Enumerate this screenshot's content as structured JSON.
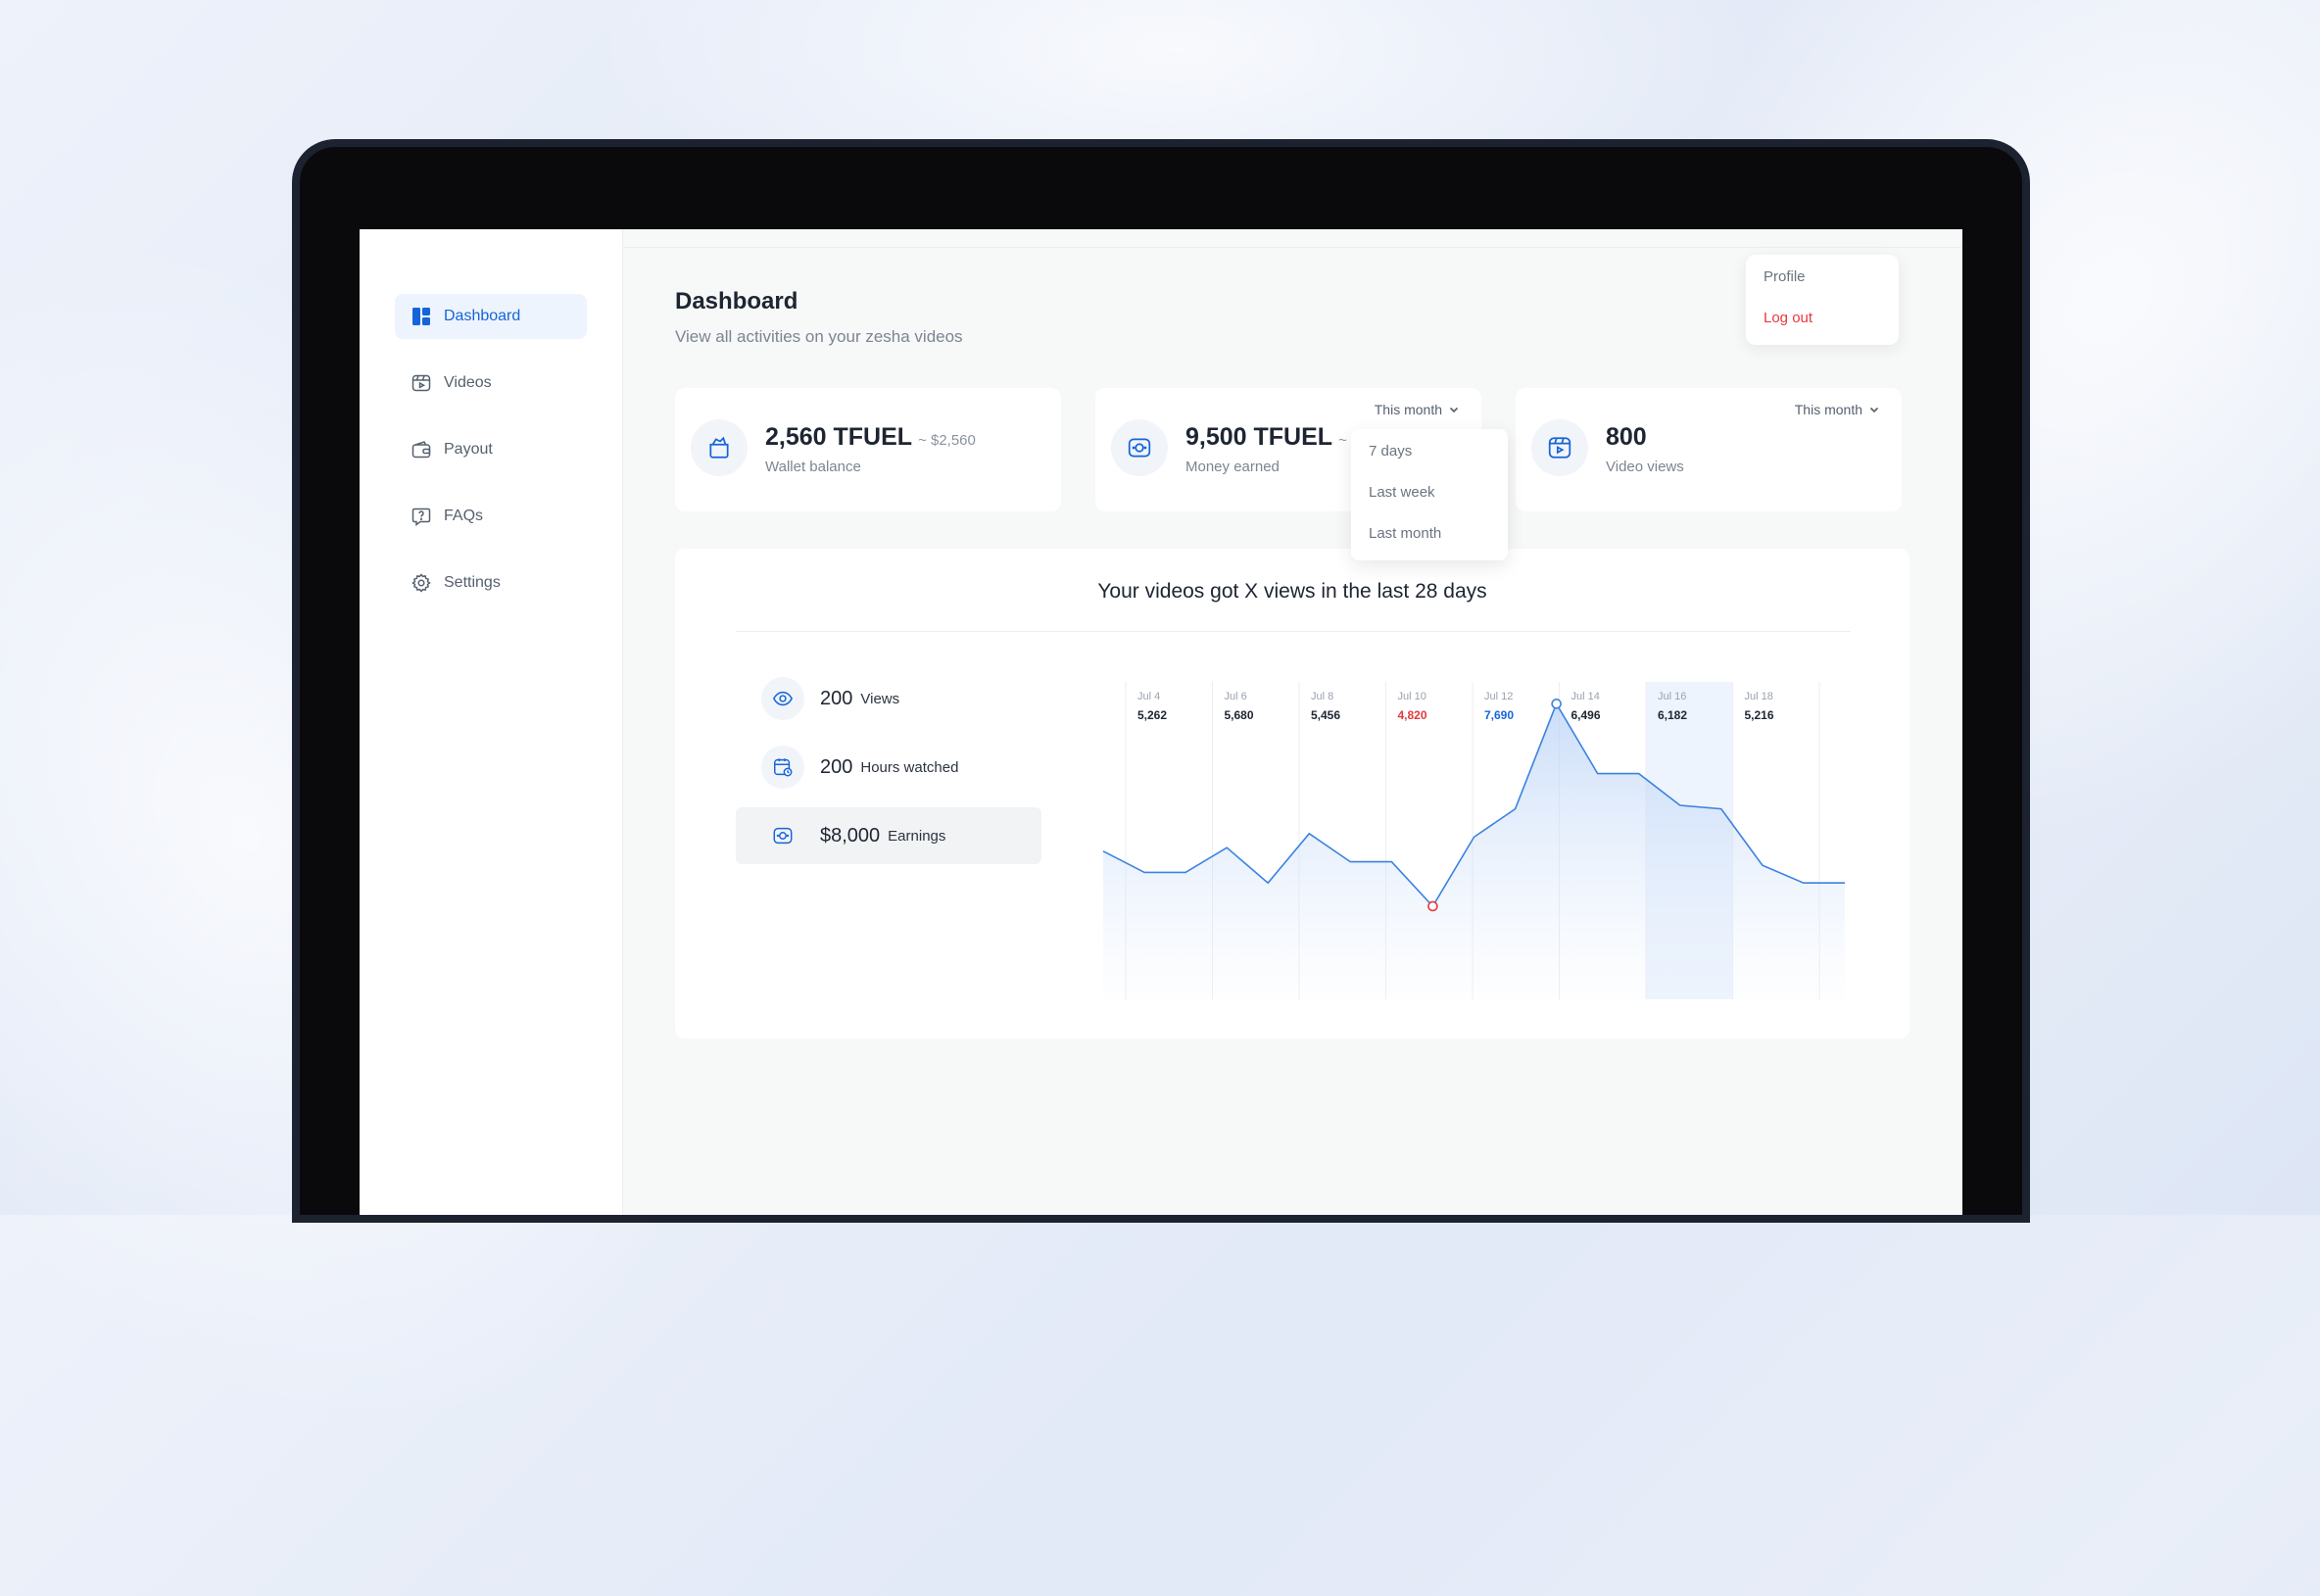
{
  "sidebar": {
    "items": [
      {
        "label": "Dashboard",
        "icon": "dashboard-icon",
        "active": true
      },
      {
        "label": "Videos",
        "icon": "video-icon",
        "active": false
      },
      {
        "label": "Payout",
        "icon": "wallet-icon",
        "active": false
      },
      {
        "label": "FAQs",
        "icon": "question-icon",
        "active": false
      },
      {
        "label": "Settings",
        "icon": "gear-icon",
        "active": false
      }
    ]
  },
  "header": {
    "title": "Dashboard",
    "subtitle": "View all activities on your zesha videos"
  },
  "profile_menu": {
    "profile": "Profile",
    "logout": "Log out"
  },
  "cards": [
    {
      "value": "2,560 TFUEL",
      "approx": "~ $2,560",
      "label": "Wallet balance",
      "icon": "wallet-icon"
    },
    {
      "value": "9,500 TFUEL",
      "approx": "~ $9",
      "label": "Money earned",
      "icon": "money-icon",
      "period": "This month"
    },
    {
      "value": "800",
      "label": "Video views",
      "icon": "video-play-icon",
      "period": "This month"
    }
  ],
  "period_dropdown": {
    "options": [
      "7 days",
      "Last week",
      "Last month"
    ]
  },
  "chart_panel": {
    "title": "Your videos got X views in the last 28 days",
    "stats": [
      {
        "value": "200",
        "label": "Views",
        "icon": "eye-icon",
        "active": false
      },
      {
        "value": "200",
        "label": "Hours watched",
        "icon": "calendar-clock-icon",
        "active": false
      },
      {
        "value": "$8,000",
        "label": "Earnings",
        "icon": "money-icon",
        "active": true
      }
    ]
  },
  "colors": {
    "accent": "#1565d8",
    "danger": "#e5393c",
    "line": "#3b82e0",
    "highlight": "#eef4fd"
  },
  "chart_data": {
    "type": "area",
    "columns": [
      {
        "date": "Jul 4",
        "value": "5,262",
        "status": "normal"
      },
      {
        "date": "Jul 6",
        "value": "5,680",
        "status": "normal"
      },
      {
        "date": "Jul 8",
        "value": "5,456",
        "status": "normal"
      },
      {
        "date": "Jul 10",
        "value": "4,820",
        "status": "low"
      },
      {
        "date": "Jul 12",
        "value": "7,690",
        "status": "high"
      },
      {
        "date": "Jul 14",
        "value": "6,496",
        "status": "normal"
      },
      {
        "date": "Jul 16",
        "value": "6,182",
        "status": "selected"
      },
      {
        "date": "Jul 18",
        "value": "5,216",
        "status": "normal"
      }
    ],
    "series_line": [
      5600,
      5300,
      5300,
      5650,
      5150,
      5850,
      5450,
      5450,
      4820,
      5800,
      6200,
      7690,
      6700,
      6700,
      6250,
      6200,
      5400,
      5150,
      5150
    ],
    "min_marker_index": 8,
    "max_marker_index": 11,
    "ylim": [
      3500,
      8000
    ],
    "grid": true
  }
}
